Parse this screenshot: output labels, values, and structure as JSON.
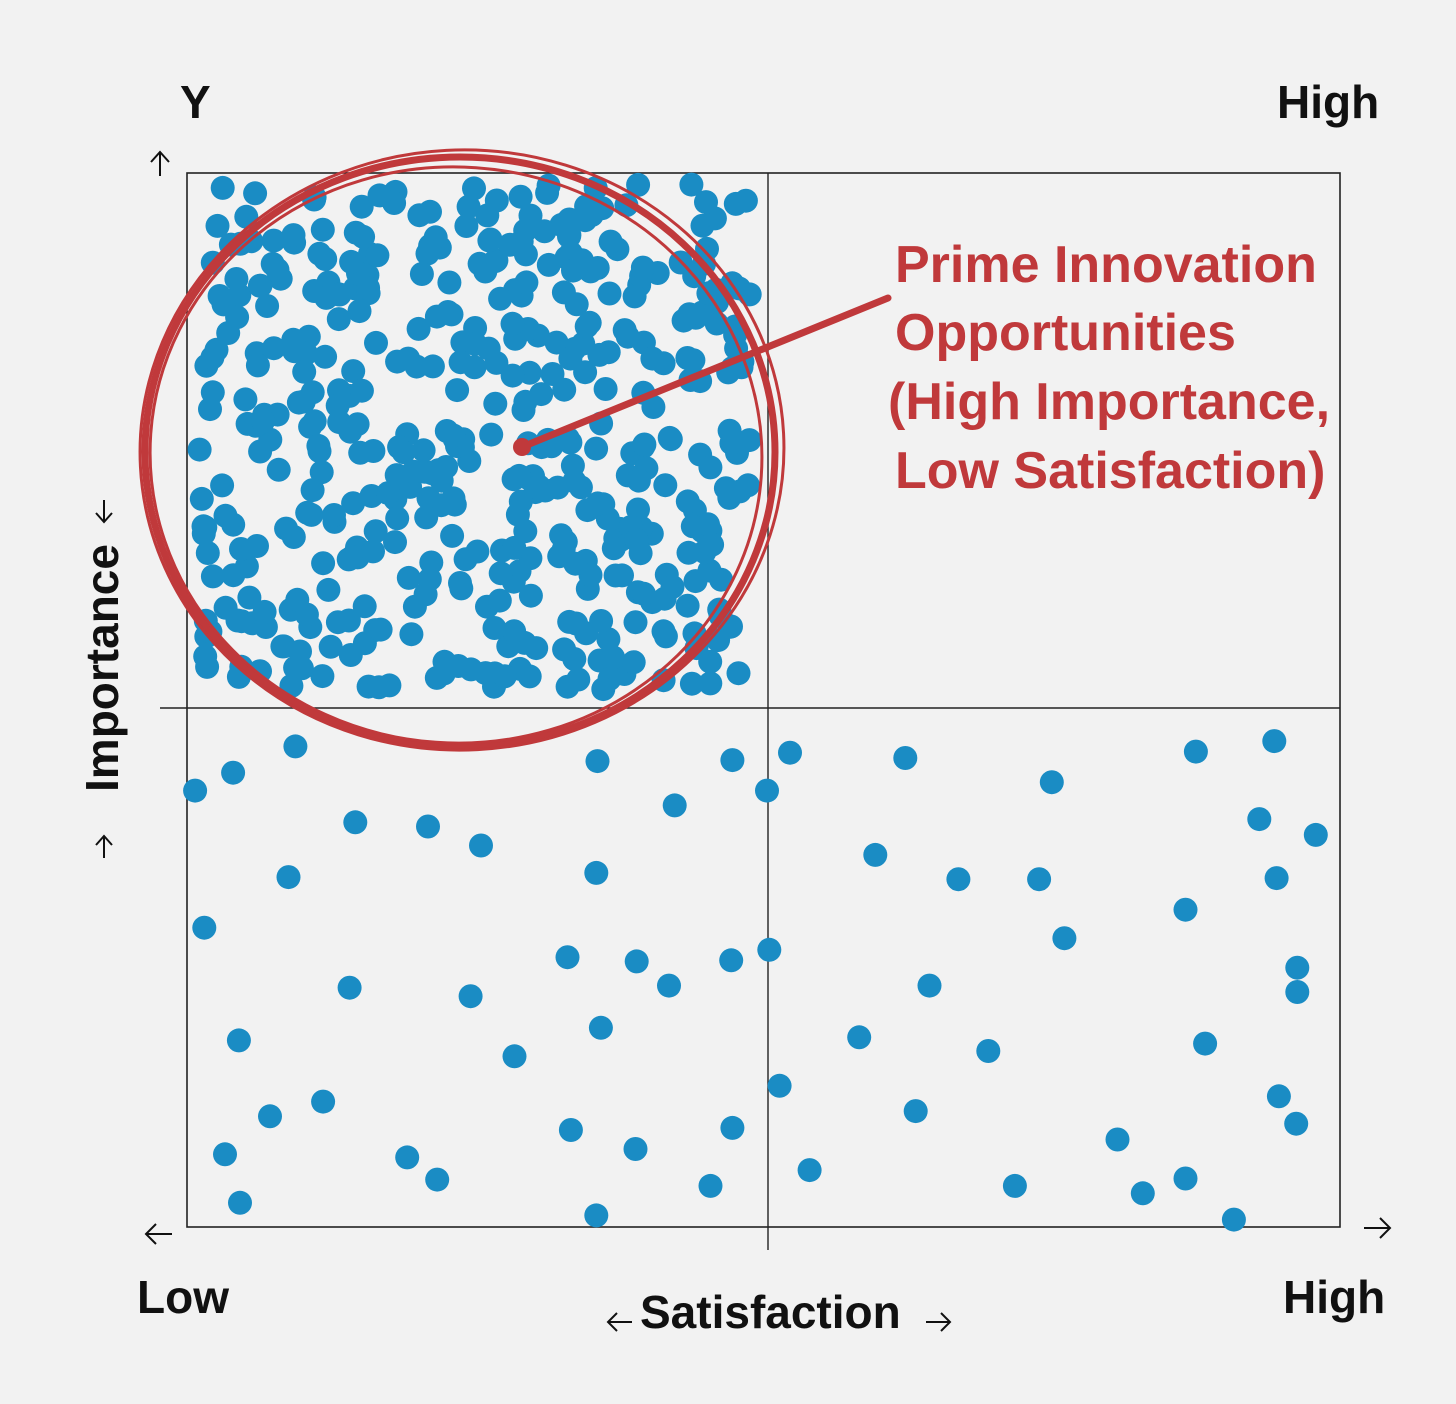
{
  "chart_data": {
    "type": "scatter",
    "title": "",
    "xlabel": "Satisfaction",
    "ylabel": "Importance",
    "y_axis_letter": "Y",
    "x_low_label": "Low",
    "x_high_label": "High",
    "y_high_label": "High",
    "xlim": [
      0,
      100
    ],
    "ylim": [
      0,
      100
    ],
    "quadrant_split": {
      "x": 50,
      "y": 50
    },
    "grid": false,
    "series_color": "#1a8cc4",
    "callout_color": "#c0393b",
    "annotation": {
      "lines": [
        "Prime Innovation",
        "Opportunities",
        "(High Importance,",
        "Low Satisfaction)"
      ],
      "target_quadrant": "top-left"
    },
    "dense_cluster": {
      "quadrant": "top-left",
      "x_range": [
        0,
        50
      ],
      "y_range": [
        50,
        100
      ],
      "approx_count": 480
    },
    "points": [
      {
        "x": 0.7,
        "y": 41.4
      },
      {
        "x": 4.0,
        "y": 43.1
      },
      {
        "x": 9.4,
        "y": 45.6
      },
      {
        "x": 8.8,
        "y": 33.2
      },
      {
        "x": 1.5,
        "y": 28.4
      },
      {
        "x": 14.6,
        "y": 38.4
      },
      {
        "x": 20.9,
        "y": 38.0
      },
      {
        "x": 25.5,
        "y": 36.2
      },
      {
        "x": 14.1,
        "y": 22.7
      },
      {
        "x": 24.6,
        "y": 21.9
      },
      {
        "x": 35.6,
        "y": 44.2
      },
      {
        "x": 35.5,
        "y": 33.6
      },
      {
        "x": 42.3,
        "y": 40.0
      },
      {
        "x": 47.3,
        "y": 44.3
      },
      {
        "x": 33.0,
        "y": 25.6
      },
      {
        "x": 39.0,
        "y": 25.2
      },
      {
        "x": 41.8,
        "y": 22.9
      },
      {
        "x": 47.2,
        "y": 25.3
      },
      {
        "x": 4.5,
        "y": 17.7
      },
      {
        "x": 11.8,
        "y": 11.9
      },
      {
        "x": 7.2,
        "y": 10.5
      },
      {
        "x": 3.3,
        "y": 6.9
      },
      {
        "x": 4.6,
        "y": 2.3
      },
      {
        "x": 19.1,
        "y": 6.6
      },
      {
        "x": 21.7,
        "y": 4.5
      },
      {
        "x": 28.4,
        "y": 16.2
      },
      {
        "x": 33.3,
        "y": 9.2
      },
      {
        "x": 35.5,
        "y": 1.1
      },
      {
        "x": 38.9,
        "y": 7.4
      },
      {
        "x": 45.4,
        "y": 3.9
      },
      {
        "x": 47.3,
        "y": 9.4
      },
      {
        "x": 35.9,
        "y": 18.9
      },
      {
        "x": 52.3,
        "y": 45.0
      },
      {
        "x": 62.3,
        "y": 44.5
      },
      {
        "x": 75.0,
        "y": 42.2
      },
      {
        "x": 87.5,
        "y": 45.1
      },
      {
        "x": 94.3,
        "y": 46.1
      },
      {
        "x": 93.0,
        "y": 38.7
      },
      {
        "x": 97.9,
        "y": 37.2
      },
      {
        "x": 59.7,
        "y": 35.3
      },
      {
        "x": 66.9,
        "y": 33.0
      },
      {
        "x": 73.9,
        "y": 33.0
      },
      {
        "x": 86.6,
        "y": 30.1
      },
      {
        "x": 94.5,
        "y": 33.1
      },
      {
        "x": 76.1,
        "y": 27.4
      },
      {
        "x": 96.3,
        "y": 24.6
      },
      {
        "x": 96.3,
        "y": 22.3
      },
      {
        "x": 64.4,
        "y": 22.9
      },
      {
        "x": 58.3,
        "y": 18.0
      },
      {
        "x": 69.5,
        "y": 16.7
      },
      {
        "x": 88.3,
        "y": 17.4
      },
      {
        "x": 94.7,
        "y": 12.4
      },
      {
        "x": 96.2,
        "y": 9.8
      },
      {
        "x": 63.2,
        "y": 11.0
      },
      {
        "x": 80.7,
        "y": 8.3
      },
      {
        "x": 82.9,
        "y": 3.2
      },
      {
        "x": 86.6,
        "y": 4.6
      },
      {
        "x": 71.8,
        "y": 3.9
      },
      {
        "x": 54.0,
        "y": 5.4
      },
      {
        "x": 90.8,
        "y": 0.7
      },
      {
        "x": 50.5,
        "y": 26.3
      },
      {
        "x": 50.3,
        "y": 41.4
      },
      {
        "x": 51.4,
        "y": 13.4
      }
    ]
  }
}
